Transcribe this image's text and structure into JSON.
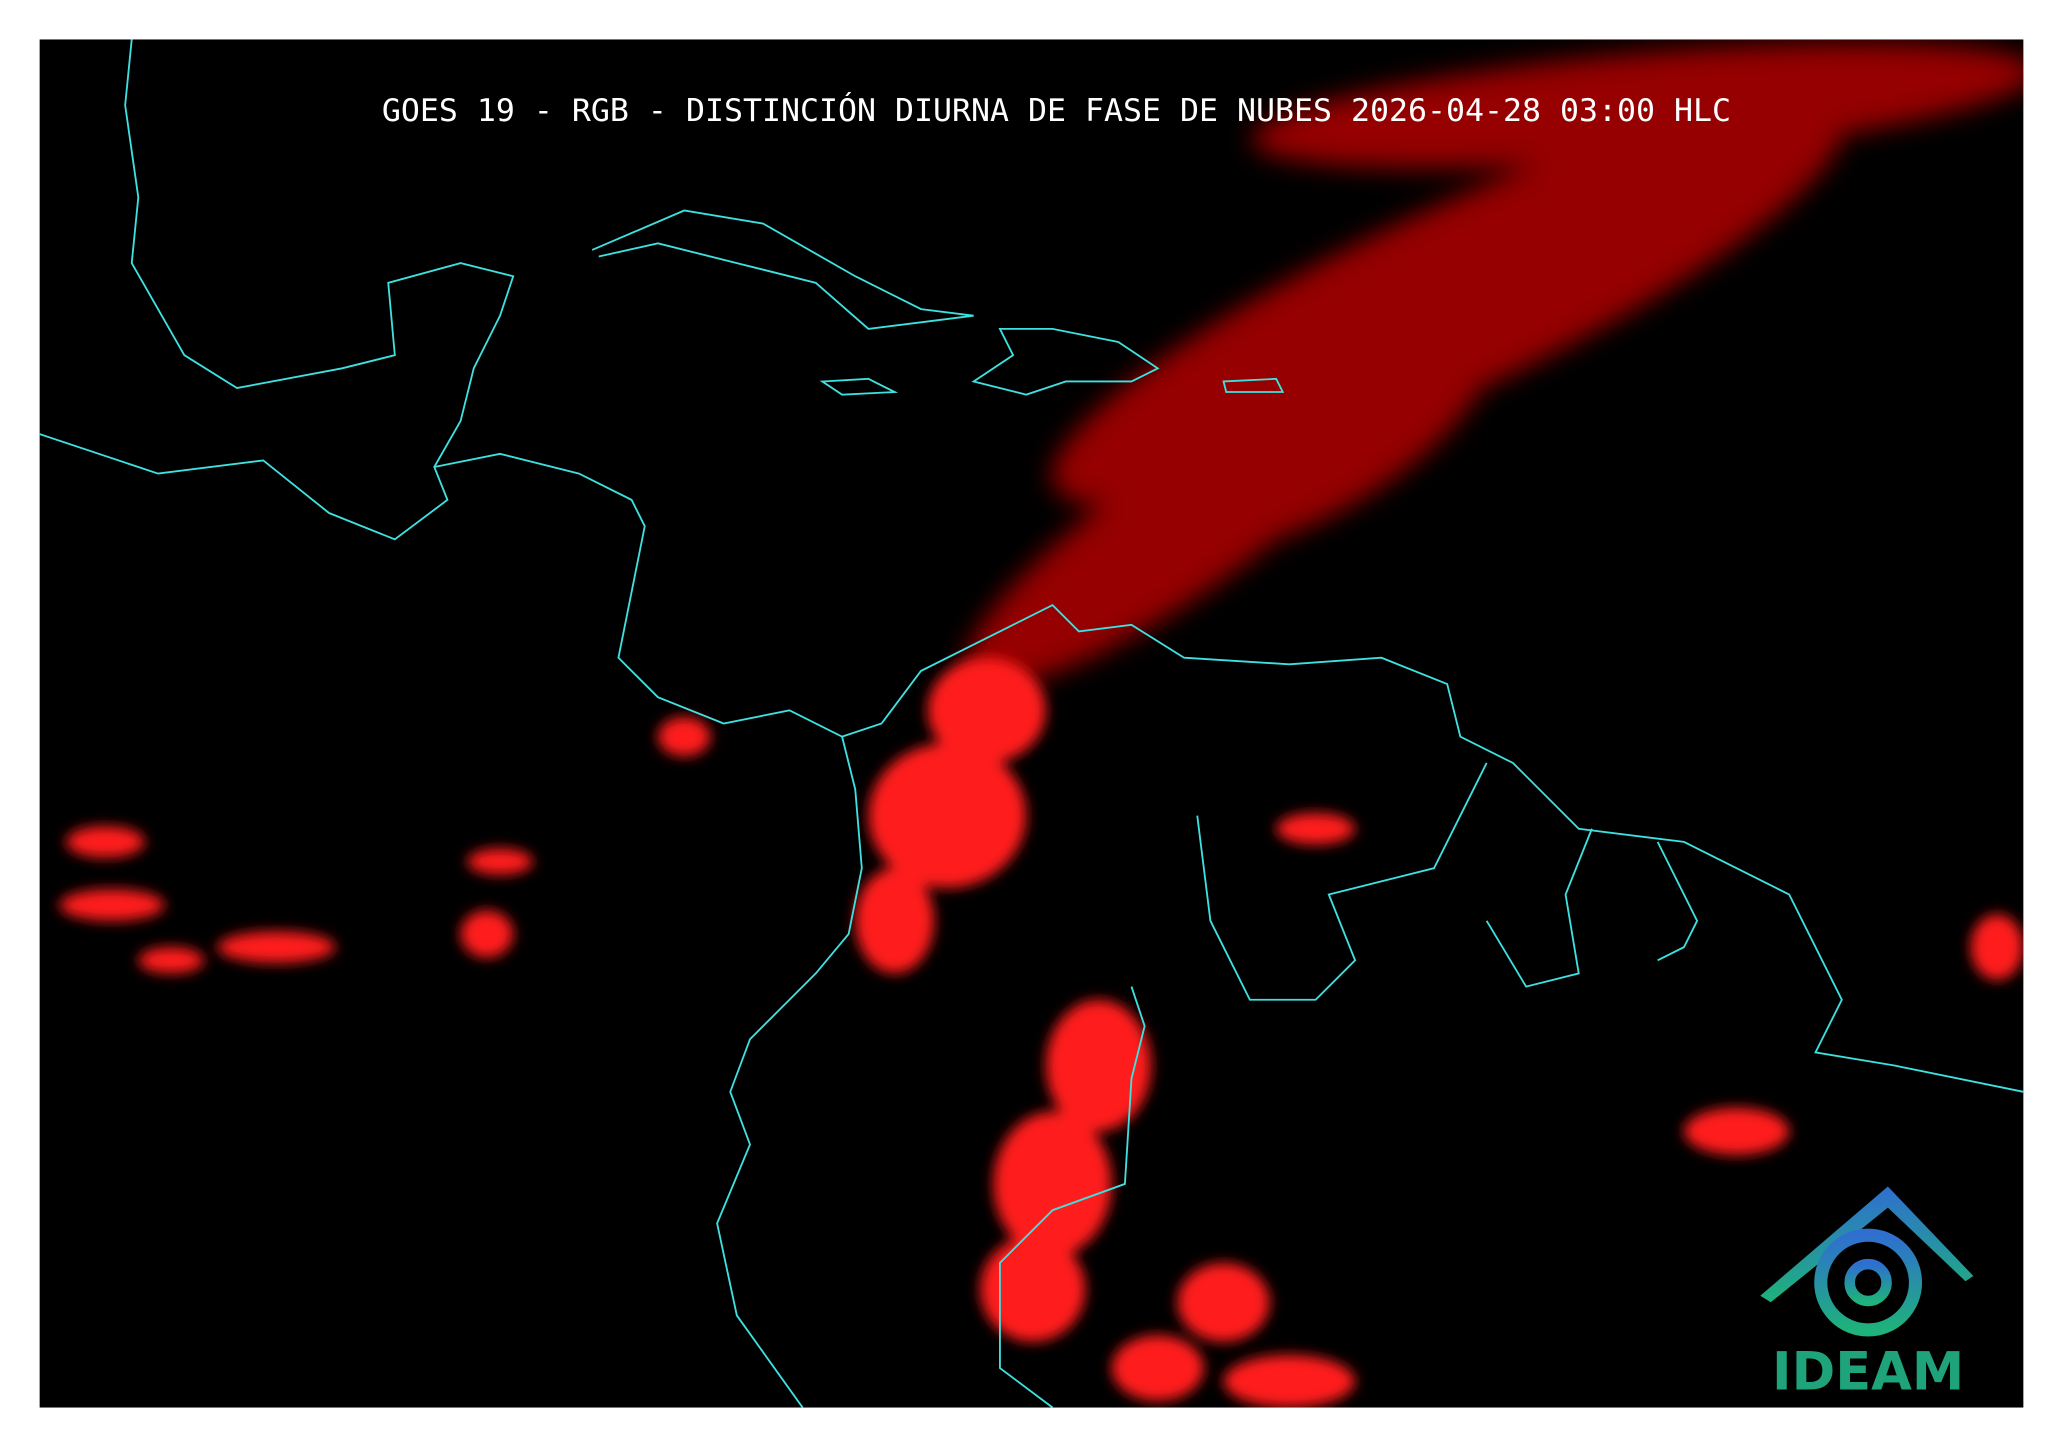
{
  "header": {
    "title": "GOES 19 - RGB - DISTINCIÓN DIURNA DE FASE DE NUBES 2026-04-28 03:00 HLC"
  },
  "logo": {
    "text": "IDEAM"
  }
}
